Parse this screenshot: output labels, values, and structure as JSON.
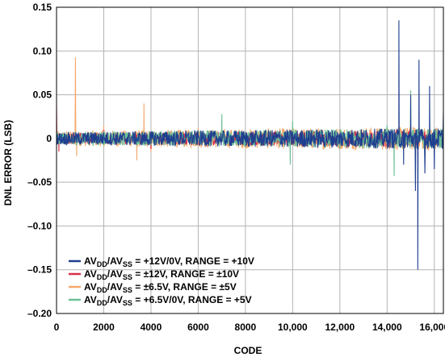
{
  "chart_data": {
    "type": "line",
    "title": "",
    "xlabel": "CODE",
    "ylabel": "DNL ERROR (LSB)",
    "xlim": [
      0,
      16384
    ],
    "ylim": [
      -0.2,
      0.15
    ],
    "grid": true,
    "x_ticks": [
      0,
      2000,
      4000,
      6000,
      8000,
      10000,
      12000,
      14000,
      16000
    ],
    "x_tick_labels": [
      "0",
      "2000",
      "4000",
      "6000",
      "8000",
      "10,000",
      "12,000",
      "14,000",
      "16,000"
    ],
    "y_ticks": [
      0.15,
      0.1,
      0.05,
      0,
      -0.05,
      -0.1,
      -0.15,
      -0.2
    ],
    "y_tick_labels": [
      "0.15",
      "0.10",
      "0.05",
      "0",
      "–0.05",
      "–0.10",
      "–0.15",
      "–0.20"
    ],
    "legend_position": "bottom-left",
    "series": [
      {
        "name": "AVDD/AVSS = +12V/0V, RANGE = +10V",
        "legend": {
          "pre": "AV",
          "sub1": "DD",
          "mid": "/AV",
          "sub2": "SS",
          "post": " = +12V/0V, RANGE = +10V"
        },
        "color": "#1f3f8f",
        "noise_amplitude": 0.012,
        "points": [
          [
            0,
            -0.005
          ],
          [
            2000,
            0.004
          ],
          [
            4000,
            -0.006
          ],
          [
            6000,
            0.005
          ],
          [
            8000,
            -0.004
          ],
          [
            10000,
            0.006
          ],
          [
            12000,
            -0.006
          ],
          [
            14000,
            0.008
          ],
          [
            14500,
            0.135
          ],
          [
            14700,
            -0.03
          ],
          [
            15000,
            0.05
          ],
          [
            15200,
            -0.06
          ],
          [
            15300,
            -0.15
          ],
          [
            15350,
            0.09
          ],
          [
            15600,
            -0.04
          ],
          [
            15800,
            0.06
          ],
          [
            16000,
            -0.035
          ],
          [
            16384,
            0.03
          ]
        ]
      },
      {
        "name": "AVDD/AVSS = ±12V, RANGE = ±10V",
        "legend": {
          "pre": "AV",
          "sub1": "DD",
          "mid": "/AV",
          "sub2": "SS",
          "post": " = ±12V, RANGE = ±10V"
        },
        "color": "#d9304a",
        "noise_amplitude": 0.01,
        "points": [
          [
            0,
            0.038
          ],
          [
            100,
            -0.015
          ],
          [
            2000,
            0.01
          ],
          [
            4000,
            -0.012
          ],
          [
            6000,
            0.008
          ],
          [
            8000,
            -0.01
          ],
          [
            10000,
            0.009
          ],
          [
            12000,
            -0.008
          ],
          [
            14000,
            0.01
          ],
          [
            16000,
            -0.01
          ],
          [
            16384,
            0.005
          ]
        ]
      },
      {
        "name": "AVDD/AVSS = ±6.5V, RANGE = ±5V",
        "legend": {
          "pre": "AV",
          "sub1": "DD",
          "mid": "/AV",
          "sub2": "SS",
          "post": " = ±6.5V, RANGE = ±5V"
        },
        "color": "#f7a86c",
        "noise_amplitude": 0.014,
        "points": [
          [
            0,
            0.01
          ],
          [
            800,
            0.093
          ],
          [
            850,
            -0.02
          ],
          [
            2000,
            0.015
          ],
          [
            3400,
            -0.025
          ],
          [
            3700,
            0.04
          ],
          [
            4000,
            -0.015
          ],
          [
            6000,
            0.012
          ],
          [
            8000,
            -0.012
          ],
          [
            10000,
            0.012
          ],
          [
            12000,
            -0.012
          ],
          [
            14000,
            0.012
          ],
          [
            16000,
            -0.012
          ],
          [
            16384,
            0.008
          ]
        ]
      },
      {
        "name": "AVDD/AVSS = +6.5V/0V, RANGE = +5V",
        "legend": {
          "pre": "AV",
          "sub1": "DD",
          "mid": "/AV",
          "sub2": "SS",
          "post": " = +6.5V/0V, RANGE = +5V"
        },
        "color": "#6cbf97",
        "noise_amplitude": 0.012,
        "points": [
          [
            0,
            -0.005
          ],
          [
            2000,
            0.008
          ],
          [
            4000,
            -0.008
          ],
          [
            6000,
            0.01
          ],
          [
            7000,
            0.028
          ],
          [
            8000,
            -0.01
          ],
          [
            9900,
            -0.03
          ],
          [
            10000,
            0.02
          ],
          [
            12000,
            -0.012
          ],
          [
            14000,
            0.015
          ],
          [
            14300,
            -0.043
          ],
          [
            15000,
            0.055
          ],
          [
            16000,
            -0.02
          ],
          [
            16384,
            0.025
          ]
        ]
      }
    ]
  }
}
